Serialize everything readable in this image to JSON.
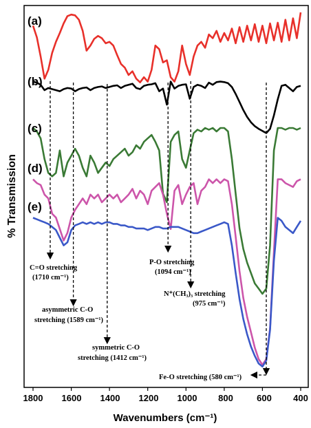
{
  "chart_data": {
    "type": "line",
    "title": "",
    "xlabel": "Wavenumbers (cm⁻¹)",
    "ylabel": "% Transmission",
    "xlim": [
      1800,
      400
    ],
    "x_ticks": [
      "1800",
      "1600",
      "1400",
      "1200",
      "1000",
      "800",
      "600",
      "400"
    ],
    "grid": false,
    "series": [
      {
        "name": "(a)",
        "color": "#e8302a",
        "x": [
          1800,
          1780,
          1760,
          1740,
          1720,
          1700,
          1680,
          1660,
          1640,
          1620,
          1600,
          1580,
          1560,
          1540,
          1520,
          1500,
          1480,
          1460,
          1440,
          1420,
          1400,
          1380,
          1360,
          1340,
          1320,
          1300,
          1280,
          1260,
          1240,
          1220,
          1200,
          1180,
          1160,
          1140,
          1120,
          1100,
          1080,
          1060,
          1040,
          1020,
          1000,
          980,
          960,
          940,
          920,
          900,
          880,
          860,
          840,
          820,
          800,
          780,
          760,
          740,
          720,
          700,
          680,
          660,
          640,
          620,
          600,
          580,
          560,
          540,
          520,
          500,
          480,
          460,
          440,
          420,
          400
        ],
        "y": [
          0.82,
          0.66,
          0.4,
          0.1,
          0.22,
          0.45,
          0.6,
          0.72,
          0.85,
          0.95,
          0.97,
          0.96,
          0.9,
          0.75,
          0.48,
          0.55,
          0.64,
          0.68,
          0.65,
          0.58,
          0.6,
          0.55,
          0.42,
          0.3,
          0.25,
          0.15,
          0.2,
          0.1,
          0.05,
          0.12,
          0.06,
          0.22,
          0.55,
          0.5,
          0.32,
          0.35,
          0.12,
          0.06,
          0.2,
          0.55,
          0.3,
          0.15,
          0.4,
          0.55,
          0.6,
          0.52,
          0.7,
          0.65,
          0.75,
          0.6,
          0.72,
          0.62,
          0.78,
          0.58,
          0.8,
          0.6,
          0.82,
          0.62,
          0.84,
          0.6,
          0.82,
          0.58,
          0.85,
          0.62,
          0.86,
          0.6,
          0.9,
          0.62,
          0.92,
          0.65,
          1.0
        ]
      },
      {
        "name": "(b)",
        "color": "#000000",
        "x": [
          1800,
          1780,
          1760,
          1740,
          1720,
          1700,
          1680,
          1660,
          1640,
          1620,
          1600,
          1580,
          1560,
          1540,
          1520,
          1500,
          1480,
          1460,
          1440,
          1420,
          1400,
          1380,
          1360,
          1340,
          1320,
          1300,
          1280,
          1260,
          1240,
          1220,
          1200,
          1180,
          1160,
          1140,
          1120,
          1100,
          1080,
          1060,
          1040,
          1020,
          1000,
          980,
          960,
          940,
          920,
          900,
          880,
          860,
          840,
          820,
          800,
          780,
          760,
          740,
          720,
          700,
          680,
          660,
          640,
          620,
          600,
          580,
          560,
          540,
          520,
          500,
          480,
          460,
          440,
          420,
          400
        ],
        "y": [
          0.98,
          0.96,
          0.92,
          0.82,
          0.86,
          0.84,
          0.82,
          0.8,
          0.84,
          0.86,
          0.85,
          0.8,
          0.84,
          0.86,
          0.87,
          0.82,
          0.86,
          0.88,
          0.89,
          0.86,
          0.88,
          0.9,
          0.91,
          0.86,
          0.9,
          0.92,
          0.94,
          0.86,
          0.84,
          0.9,
          0.92,
          0.93,
          0.95,
          0.8,
          0.85,
          0.55,
          0.98,
          0.85,
          0.9,
          0.92,
          0.93,
          0.66,
          0.88,
          0.92,
          0.9,
          0.86,
          0.96,
          0.92,
          0.97,
          0.98,
          0.97,
          0.95,
          0.88,
          0.75,
          0.6,
          0.45,
          0.32,
          0.22,
          0.15,
          0.1,
          0.06,
          0.02,
          0.1,
          0.35,
          0.65,
          0.9,
          0.92,
          0.86,
          0.8,
          0.88,
          0.9
        ]
      },
      {
        "name": "(c)",
        "color": "#3a7a35",
        "x": [
          1800,
          1780,
          1760,
          1740,
          1720,
          1700,
          1680,
          1660,
          1640,
          1620,
          1600,
          1580,
          1560,
          1540,
          1520,
          1500,
          1480,
          1460,
          1440,
          1420,
          1400,
          1380,
          1360,
          1340,
          1320,
          1300,
          1280,
          1260,
          1240,
          1220,
          1200,
          1180,
          1160,
          1140,
          1120,
          1100,
          1080,
          1060,
          1040,
          1020,
          1000,
          980,
          960,
          940,
          920,
          900,
          880,
          860,
          840,
          820,
          800,
          780,
          760,
          740,
          720,
          700,
          680,
          660,
          640,
          620,
          600,
          580,
          560,
          540,
          520,
          500,
          480,
          460,
          440,
          420,
          400
        ],
        "y": [
          0.98,
          0.96,
          0.92,
          0.8,
          0.72,
          0.7,
          0.72,
          0.85,
          0.7,
          0.78,
          0.82,
          0.86,
          0.82,
          0.75,
          0.7,
          0.82,
          0.78,
          0.72,
          0.75,
          0.78,
          0.76,
          0.8,
          0.82,
          0.84,
          0.86,
          0.82,
          0.84,
          0.88,
          0.86,
          0.9,
          0.92,
          0.94,
          0.9,
          0.85,
          0.6,
          0.55,
          0.9,
          0.94,
          0.96,
          0.8,
          0.75,
          0.85,
          0.95,
          0.97,
          0.96,
          0.98,
          0.97,
          0.98,
          0.96,
          0.98,
          0.98,
          0.96,
          0.8,
          0.6,
          0.4,
          0.28,
          0.2,
          0.14,
          0.08,
          0.05,
          0.02,
          0.05,
          0.3,
          0.85,
          0.98,
          0.98,
          0.97,
          0.98,
          0.98,
          0.97,
          0.98
        ]
      },
      {
        "name": "(d)",
        "color": "#cc55aa",
        "x": [
          1800,
          1780,
          1760,
          1740,
          1720,
          1700,
          1680,
          1660,
          1640,
          1620,
          1600,
          1580,
          1560,
          1540,
          1520,
          1500,
          1480,
          1460,
          1440,
          1420,
          1400,
          1380,
          1360,
          1340,
          1320,
          1300,
          1280,
          1260,
          1240,
          1220,
          1200,
          1180,
          1160,
          1140,
          1120,
          1100,
          1080,
          1060,
          1040,
          1020,
          1000,
          980,
          960,
          940,
          920,
          900,
          880,
          860,
          840,
          820,
          800,
          780,
          760,
          740,
          720,
          700,
          680,
          660,
          640,
          620,
          600,
          580,
          560,
          540,
          520,
          500,
          480,
          460,
          440,
          420,
          400
        ],
        "y": [
          0.98,
          0.96,
          0.95,
          0.9,
          0.88,
          0.8,
          0.78,
          0.72,
          0.66,
          0.7,
          0.78,
          0.82,
          0.85,
          0.88,
          0.85,
          0.9,
          0.88,
          0.9,
          0.86,
          0.88,
          0.9,
          0.88,
          0.9,
          0.86,
          0.88,
          0.9,
          0.93,
          0.88,
          0.92,
          0.9,
          0.85,
          0.92,
          0.94,
          0.96,
          0.9,
          0.8,
          0.72,
          0.92,
          0.95,
          0.85,
          0.9,
          0.94,
          0.96,
          0.85,
          0.92,
          0.94,
          0.98,
          0.96,
          0.98,
          0.96,
          0.98,
          0.97,
          0.85,
          0.68,
          0.5,
          0.36,
          0.26,
          0.18,
          0.1,
          0.04,
          0.01,
          0.04,
          0.2,
          0.6,
          0.98,
          0.98,
          0.96,
          0.95,
          0.94,
          0.97,
          0.98
        ]
      },
      {
        "name": "(e)",
        "color": "#3a58c8",
        "x": [
          1800,
          1780,
          1760,
          1740,
          1720,
          1700,
          1680,
          1660,
          1640,
          1620,
          1600,
          1580,
          1560,
          1540,
          1520,
          1500,
          1480,
          1460,
          1440,
          1420,
          1400,
          1380,
          1360,
          1340,
          1320,
          1300,
          1280,
          1260,
          1240,
          1220,
          1200,
          1180,
          1160,
          1140,
          1120,
          1100,
          1080,
          1060,
          1040,
          1020,
          1000,
          980,
          960,
          940,
          920,
          900,
          880,
          860,
          840,
          820,
          800,
          780,
          760,
          740,
          720,
          700,
          680,
          660,
          640,
          620,
          600,
          580,
          560,
          540,
          520,
          500,
          480,
          460,
          440,
          420,
          400
        ],
        "y": [
          0.98,
          0.97,
          0.96,
          0.95,
          0.94,
          0.92,
          0.9,
          0.85,
          0.8,
          0.82,
          0.9,
          0.93,
          0.94,
          0.95,
          0.94,
          0.95,
          0.94,
          0.95,
          0.94,
          0.95,
          0.95,
          0.94,
          0.94,
          0.93,
          0.93,
          0.92,
          0.92,
          0.91,
          0.91,
          0.91,
          0.9,
          0.91,
          0.92,
          0.92,
          0.91,
          0.91,
          0.92,
          0.92,
          0.92,
          0.91,
          0.9,
          0.89,
          0.88,
          0.88,
          0.89,
          0.9,
          0.91,
          0.92,
          0.93,
          0.94,
          0.95,
          0.94,
          0.8,
          0.62,
          0.45,
          0.32,
          0.22,
          0.14,
          0.08,
          0.03,
          0.01,
          0.05,
          0.25,
          0.7,
          0.98,
          0.96,
          0.92,
          0.9,
          0.88,
          0.92,
          0.96
        ]
      }
    ],
    "annotations": [
      {
        "x": 1710,
        "lines": [
          "C=O stretching",
          "(1710 cm⁻¹)"
        ]
      },
      {
        "x": 1589,
        "lines": [
          "asymmetric  C-O",
          "stretching (1589 cm⁻¹)"
        ]
      },
      {
        "x": 1412,
        "lines": [
          "symmetric C-O",
          "stretching (1412 cm⁻¹)"
        ]
      },
      {
        "x": 1094,
        "lines": [
          "P-O stretching",
          "(1094 cm⁻¹)"
        ]
      },
      {
        "x": 975,
        "lines": [
          "N⁺(CH₃)₃ stretching",
          "(975 cm⁻¹)"
        ]
      },
      {
        "x": 580,
        "lines": [
          "Fe-O stretching (580 cm⁻¹)"
        ]
      }
    ]
  }
}
